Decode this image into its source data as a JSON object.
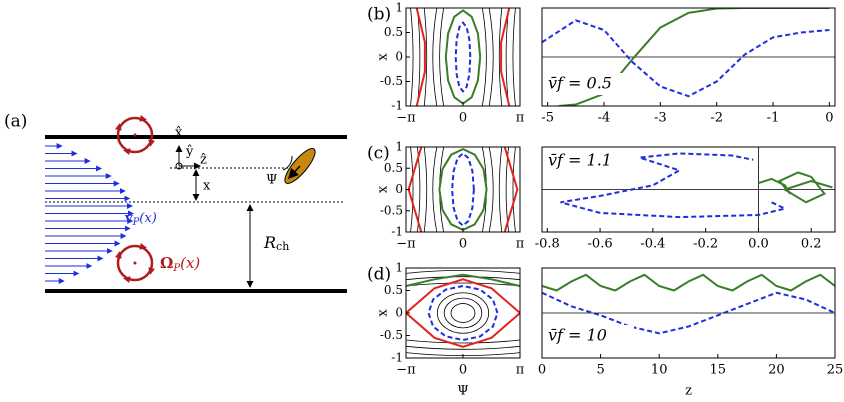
{
  "diagram": {
    "panel_label": "(a)",
    "x_hat": "x̂",
    "y_hat": "ŷ",
    "z_hat": "ẑ",
    "x": "x",
    "psi": "Ψ",
    "velocity": {
      "symbol": "v",
      "sub": "P",
      "arg": "(x)"
    },
    "vorticity": {
      "symbol": "Ω",
      "sub": "P",
      "arg": "(x)"
    },
    "radius": {
      "symbol": "R",
      "sub": "ch"
    }
  },
  "chart_data": [
    {
      "type": "line",
      "panel_label": "(b)",
      "ylabel": "x",
      "xlim": [
        -3.1416,
        3.1416
      ],
      "ylim": [
        -1,
        1
      ],
      "xticks": [
        {
          "value": -3.1416,
          "label": "−π"
        },
        0,
        {
          "value": 3.1416,
          "label": "π"
        }
      ],
      "yticks": [
        1,
        0.5,
        0,
        -0.5,
        -1
      ],
      "series": [
        {
          "color": "#e3231f",
          "x": [
            -2.55,
            -2.1,
            -2.1,
            -2.55
          ],
          "values": [
            1,
            0.3,
            -0.3,
            -1
          ]
        },
        {
          "color": "#e3231f",
          "x": [
            2.55,
            2.1,
            2.1,
            2.55
          ],
          "values": [
            1,
            0.3,
            -0.3,
            -1
          ]
        },
        {
          "color": "#3a7d2a",
          "x": [
            0.95,
            0.82,
            0.48,
            0,
            -0.48,
            -0.82,
            -0.95,
            -0.82,
            -0.48,
            0,
            0.48,
            0.82,
            0.95
          ],
          "values": [
            0,
            0.48,
            0.82,
            0.95,
            0.82,
            0.48,
            0,
            -0.48,
            -0.82,
            -0.95,
            -0.82,
            -0.48,
            0
          ]
        },
        {
          "color": "#1f2de0",
          "dashed": true,
          "x": [
            0.4,
            0.35,
            0.2,
            0,
            -0.2,
            -0.35,
            -0.4,
            -0.35,
            -0.2,
            0,
            0.2,
            0.35,
            0.4
          ],
          "values": [
            0,
            0.35,
            0.61,
            0.7,
            0.61,
            0.35,
            0,
            -0.35,
            -0.61,
            -0.7,
            -0.61,
            -0.35,
            0
          ]
        }
      ]
    },
    {
      "type": "line",
      "annotation": "v̄f = 0.5",
      "xlim": [
        -5.1,
        0.1
      ],
      "ylim": [
        -1,
        1
      ],
      "zero_line": true,
      "xticks": [
        -5,
        -4,
        -3,
        -2,
        -1,
        0
      ],
      "series": [
        {
          "color": "#3a7d2a",
          "x": [
            -4.8,
            -4.5,
            -4,
            -3.5,
            -3,
            -2.5,
            -2,
            -1.5,
            -1,
            -0.5,
            0
          ],
          "values": [
            -1,
            -0.97,
            -0.75,
            -0.05,
            0.6,
            0.9,
            0.99,
            1,
            1,
            1,
            1
          ]
        },
        {
          "color": "#1f2de0",
          "dashed": true,
          "x": [
            -5.1,
            -4.5,
            -4,
            -3.5,
            -3,
            -2.5,
            -2,
            -1.5,
            -1,
            -0.5,
            0
          ],
          "values": [
            0.3,
            0.75,
            0.55,
            -0.1,
            -0.6,
            -0.8,
            -0.5,
            0.05,
            0.4,
            0.5,
            0.55
          ]
        }
      ]
    },
    {
      "type": "line",
      "panel_label": "(c)",
      "ylabel": "x",
      "xlim": [
        -3.1416,
        3.1416
      ],
      "ylim": [
        -1,
        1
      ],
      "xticks": [
        {
          "value": -3.1416,
          "label": "−π"
        },
        0,
        {
          "value": 3.1416,
          "label": "π"
        }
      ],
      "yticks": [
        1,
        0.5,
        0,
        -0.5,
        -1
      ],
      "series": [
        {
          "color": "#e3231f",
          "x": [
            -2.3,
            -3.0,
            -2.3
          ],
          "values": [
            1,
            0,
            -1
          ]
        },
        {
          "color": "#e3231f",
          "x": [
            2.3,
            3.0,
            2.3
          ],
          "values": [
            1,
            0,
            -1
          ]
        },
        {
          "color": "#3a7d2a",
          "x": [
            1.3,
            1.13,
            0.65,
            0,
            -0.65,
            -1.13,
            -1.3,
            -1.13,
            -0.65,
            0,
            0.65,
            1.13,
            1.3
          ],
          "values": [
            0,
            0.48,
            0.82,
            0.95,
            0.82,
            0.48,
            0,
            -0.48,
            -0.82,
            -0.95,
            -0.82,
            -0.48,
            0
          ]
        },
        {
          "color": "#1f2de0",
          "dashed": true,
          "x": [
            0.6,
            0.52,
            0.3,
            0,
            -0.3,
            -0.52,
            -0.6,
            -0.52,
            -0.3,
            0,
            0.3,
            0.52,
            0.6
          ],
          "values": [
            0,
            0.43,
            0.74,
            0.85,
            0.74,
            0.43,
            0,
            -0.43,
            -0.74,
            -0.85,
            -0.74,
            -0.43,
            0
          ]
        }
      ]
    },
    {
      "type": "line",
      "annotation": "v̄f = 1.1",
      "xlim": [
        -0.82,
        0.29
      ],
      "ylim": [
        -1,
        1
      ],
      "zero_line": true,
      "zero_vline": true,
      "xticks": [
        -0.8,
        -0.6,
        -0.4,
        -0.2,
        {
          "value": 0,
          "label": "0.0"
        },
        0.2
      ],
      "series": [
        {
          "color": "#3a7d2a",
          "x": [
            0,
            0.05,
            0.1,
            0.12,
            0.08,
            0.15,
            0.2,
            0.25,
            0.18,
            0.1,
            0.2,
            0.28
          ],
          "values": [
            0.15,
            0.25,
            0.1,
            -0.1,
            0.2,
            0.4,
            0.3,
            -0.1,
            -0.3,
            0,
            0.2,
            0.05
          ]
        },
        {
          "color": "#1f2de0",
          "dashed": true,
          "x": [
            0.05,
            0.1,
            0,
            -0.3,
            -0.6,
            -0.75,
            -0.6,
            -0.4,
            -0.3,
            -0.45,
            -0.3,
            -0.1,
            -0.02
          ],
          "values": [
            -0.3,
            -0.45,
            -0.6,
            -0.65,
            -0.55,
            -0.3,
            -0.15,
            0.1,
            0.45,
            0.75,
            0.85,
            0.8,
            0.7
          ]
        }
      ]
    },
    {
      "type": "line",
      "panel_label": "(d)",
      "ylabel": "x",
      "xlabel": "Ψ",
      "xlim": [
        -3.1416,
        3.1416
      ],
      "ylim": [
        -1,
        1
      ],
      "xticks": [
        {
          "value": -3.1416,
          "label": "−π"
        },
        0,
        {
          "value": 3.1416,
          "label": "π"
        }
      ],
      "yticks": [
        1,
        0.5,
        0,
        -0.5,
        -1
      ],
      "series": [
        {
          "color": "#e3231f",
          "x": [
            -3.14,
            -1.57,
            0,
            1.57,
            3.14
          ],
          "values": [
            0,
            0.55,
            0.75,
            0.55,
            0
          ]
        },
        {
          "color": "#e3231f",
          "x": [
            -3.14,
            -1.57,
            0,
            1.57,
            3.14
          ],
          "values": [
            0,
            -0.55,
            -0.75,
            -0.55,
            0
          ]
        },
        {
          "color": "#3a7d2a",
          "x": [
            -3.14,
            -1.57,
            0,
            1.57,
            3.14
          ],
          "values": [
            0.6,
            0.75,
            0.85,
            0.75,
            0.6
          ]
        },
        {
          "color": "#1f2de0",
          "dashed": true,
          "x": [
            1.9,
            1.65,
            0.95,
            0,
            -0.95,
            -1.65,
            -1.9,
            -1.65,
            -0.95,
            0,
            0.95,
            1.65,
            1.9
          ],
          "values": [
            0,
            0.3,
            0.52,
            0.6,
            0.52,
            0.3,
            0,
            -0.3,
            -0.52,
            -0.6,
            -0.52,
            -0.3,
            0
          ]
        }
      ]
    },
    {
      "type": "line",
      "annotation": "v̄f = 10",
      "xlabel": "z",
      "xlim": [
        0,
        25
      ],
      "ylim": [
        -1,
        1
      ],
      "zero_line": true,
      "xticks": [
        0,
        5,
        10,
        15,
        20,
        25
      ],
      "series": [
        {
          "color": "#3a7d2a",
          "x": [
            0,
            1.25,
            2.5,
            3.75,
            5,
            6.25,
            7.5,
            8.75,
            10,
            11.25,
            12.5,
            13.75,
            15,
            16.25,
            17.5,
            18.75,
            20,
            21.25,
            22.5,
            23.75,
            25
          ],
          "values": [
            0.6,
            0.5,
            0.7,
            0.85,
            0.6,
            0.5,
            0.7,
            0.85,
            0.6,
            0.5,
            0.7,
            0.85,
            0.6,
            0.5,
            0.7,
            0.85,
            0.6,
            0.5,
            0.7,
            0.85,
            0.6
          ]
        },
        {
          "color": "#1f2de0",
          "dashed": true,
          "x": [
            0,
            2.5,
            5,
            7.5,
            10,
            12.5,
            15,
            17.5,
            20,
            22.5,
            25
          ],
          "values": [
            0.45,
            0.15,
            -0.05,
            -0.3,
            -0.45,
            -0.3,
            -0.05,
            0.2,
            0.45,
            0.3,
            0
          ]
        }
      ]
    }
  ]
}
